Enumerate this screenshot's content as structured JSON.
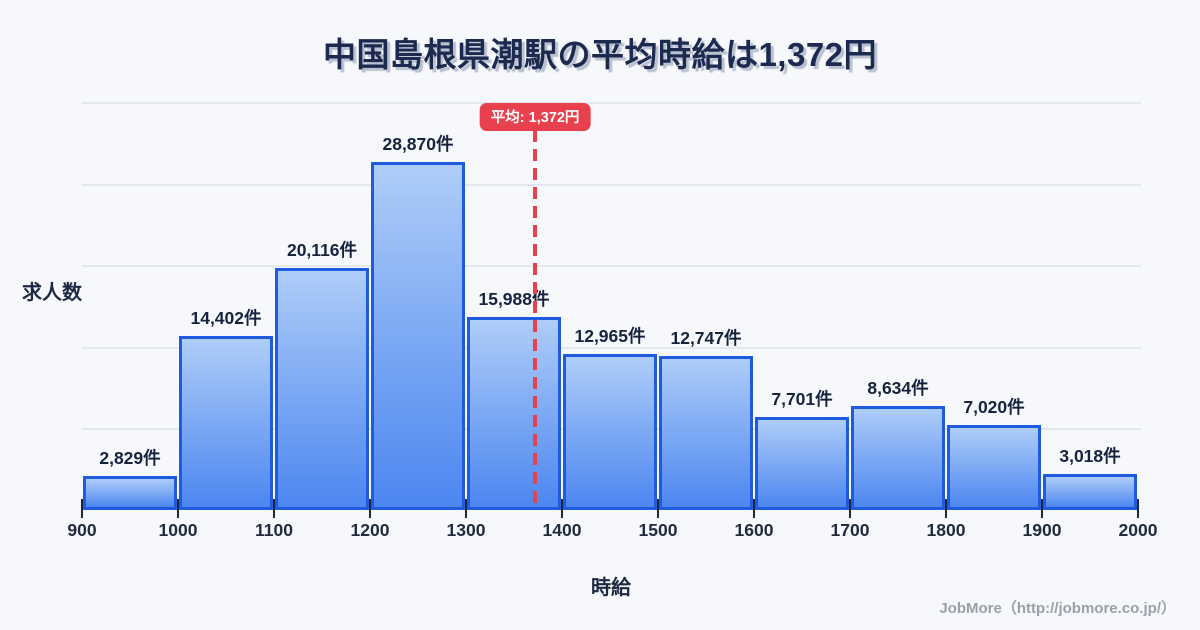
{
  "header": {
    "title": "中国島根県潮駅の平均時給は1,372円"
  },
  "axes": {
    "ylabel": "求人数",
    "xlabel": "時給"
  },
  "footer": {
    "credit": "JobMore（http://jobmore.co.jp/）"
  },
  "chart_data": {
    "type": "bar",
    "title": "中国島根県潮駅の平均時給は1,372円",
    "xlabel": "時給",
    "ylabel": "求人数",
    "x_min": 900,
    "x_max": 2000,
    "bin_width": 100,
    "x_tick_labels": [
      "900",
      "1000",
      "1100",
      "1200",
      "1300",
      "1400",
      "1500",
      "1600",
      "1700",
      "1800",
      "1900",
      "2000"
    ],
    "values": [
      2829,
      14402,
      20116,
      28870,
      15988,
      12965,
      12747,
      7701,
      8634,
      7020,
      3018
    ],
    "value_labels": [
      "2,829件",
      "14,402件",
      "20,116件",
      "28,870件",
      "15,988件",
      "12,965件",
      "12,747件",
      "7,701件",
      "8,634件",
      "7,020件",
      "3,018件"
    ],
    "average": 1372,
    "average_label": "平均: 1,372円",
    "grid": true,
    "legend": false,
    "colors": {
      "background": "#f7f8fb",
      "bar_gradient_top": "#aecdf8",
      "bar_gradient_bottom": "#4c86f0",
      "bar_border": "#1e5be0",
      "average_line": "#e8414d",
      "gridline": "#e4e7ef",
      "title_text": "#1b2a4e",
      "label_text": "#1d2940",
      "footer_text": "#9aa0aa"
    }
  }
}
